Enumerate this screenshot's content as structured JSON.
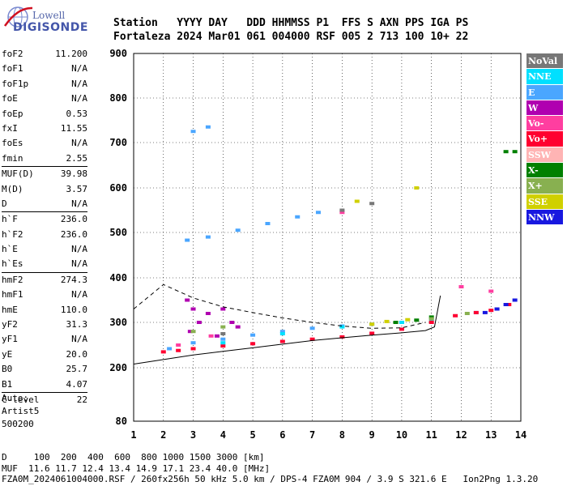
{
  "logo": {
    "top": "Lowell",
    "bottom": "DIGISONDE"
  },
  "header": {
    "line1": "Station   YYYY DAY   DDD HHMMSS P1  FFS S AXN PPS IGA PS",
    "line2": "Fortaleza 2024 Mar01 061 004000 RSF 005 2 713 100 10+ 22"
  },
  "params": {
    "group1": [
      {
        "name": "foF2",
        "value": "11.200"
      },
      {
        "name": "foF1",
        "value": "N/A"
      },
      {
        "name": "foF1p",
        "value": "N/A"
      },
      {
        "name": "foE",
        "value": "N/A"
      },
      {
        "name": "foEp",
        "value": "0.53"
      },
      {
        "name": "fxI",
        "value": "11.55"
      },
      {
        "name": "foEs",
        "value": "N/A"
      },
      {
        "name": "fmin",
        "value": "2.55"
      }
    ],
    "group2": [
      {
        "name": "MUF(D)",
        "value": "39.98"
      },
      {
        "name": "M(D)",
        "value": "3.57"
      },
      {
        "name": "D",
        "value": "N/A"
      }
    ],
    "group3": [
      {
        "name": "h`F",
        "value": "236.0"
      },
      {
        "name": "h`F2",
        "value": "236.0"
      },
      {
        "name": "h`E",
        "value": "N/A"
      },
      {
        "name": "h`Es",
        "value": "N/A"
      }
    ],
    "group4": [
      {
        "name": "hmF2",
        "value": "274.3"
      },
      {
        "name": "hmF1",
        "value": "N/A"
      },
      {
        "name": "hmE",
        "value": "110.0"
      },
      {
        "name": "yF2",
        "value": "31.3"
      },
      {
        "name": "yF1",
        "value": "N/A"
      },
      {
        "name": "yE",
        "value": "20.0"
      },
      {
        "name": "B0",
        "value": "25.7"
      },
      {
        "name": "B1",
        "value": "4.07"
      }
    ],
    "group5": [
      {
        "name": "C-level",
        "value": "22"
      }
    ]
  },
  "auto": {
    "line1": "Auto:",
    "line2": "Artist5",
    "line3": "500200"
  },
  "legend": [
    {
      "label": "NoVal",
      "color": "#777777"
    },
    {
      "label": "NNE",
      "color": "#00e0ff"
    },
    {
      "label": "E",
      "color": "#4aa6ff"
    },
    {
      "label": "W",
      "color": "#b000b0"
    },
    {
      "label": "Vo-",
      "color": "#ff3ea0"
    },
    {
      "label": "Vo+",
      "color": "#ff0030"
    },
    {
      "label": "SSW",
      "color": "#ffb4b4"
    },
    {
      "label": "X-",
      "color": "#008000"
    },
    {
      "label": "X+",
      "color": "#88b050"
    },
    {
      "label": "SSE",
      "color": "#d0d000"
    },
    {
      "label": "NNW",
      "color": "#1818e0"
    }
  ],
  "footer": {
    "line1": "D     100  200  400  600  800 1000 1500 3000 [km]",
    "line2": "MUF  11.6 11.7 12.4 13.4 14.9 17.1 23.4 40.0 [MHz]",
    "line3": "FZA0M_2024061004000.RSF / 260fx256h 50 kHz 5.0 km / DPS-4 FZA0M 904 / 3.9 S 321.6 E   Ion2Png 1.3.20"
  },
  "chart_data": {
    "type": "scatter",
    "xlim": [
      1,
      14
    ],
    "ylim": [
      80,
      900
    ],
    "x_ticks": [
      "1",
      "2",
      "3",
      "4",
      "5",
      "6",
      "7",
      "8",
      "9",
      "10",
      "11",
      "12",
      "13",
      "14"
    ],
    "y_ticks": [
      "80",
      "200",
      "300",
      "400",
      "500",
      "600",
      "700",
      "800",
      "900"
    ],
    "grid": true,
    "series": [
      {
        "name": "E",
        "points": [
          [
            2.2,
            242
          ],
          [
            3,
            255
          ],
          [
            4,
            263
          ],
          [
            5,
            272
          ],
          [
            6,
            280
          ],
          [
            7,
            287
          ],
          [
            8,
            292
          ],
          [
            9,
            296
          ],
          [
            10,
            300
          ],
          [
            11,
            306
          ],
          [
            2.8,
            483
          ],
          [
            3.5,
            490
          ],
          [
            4.5,
            505
          ],
          [
            5.5,
            520
          ],
          [
            6.5,
            535
          ],
          [
            7.2,
            545
          ],
          [
            3,
            725
          ],
          [
            3.5,
            735
          ],
          [
            12.5,
            322
          ],
          [
            13.2,
            330
          ]
        ]
      },
      {
        "name": "Vo+",
        "points": [
          [
            2,
            235
          ],
          [
            2.5,
            238
          ],
          [
            3,
            242
          ],
          [
            4,
            248
          ],
          [
            5,
            253
          ],
          [
            6,
            258
          ],
          [
            7,
            263
          ],
          [
            8,
            268
          ],
          [
            9,
            276
          ],
          [
            10,
            285
          ],
          [
            11,
            300
          ],
          [
            11.8,
            315
          ],
          [
            12.5,
            322
          ],
          [
            13,
            327
          ],
          [
            13.6,
            340
          ]
        ]
      },
      {
        "name": "W",
        "points": [
          [
            2.8,
            350
          ],
          [
            3,
            330
          ],
          [
            3.2,
            300
          ],
          [
            3.5,
            320
          ],
          [
            4,
            330
          ],
          [
            4.3,
            300
          ],
          [
            4.5,
            290
          ],
          [
            2.9,
            280
          ],
          [
            3.8,
            270
          ]
        ]
      },
      {
        "name": "X-",
        "points": [
          [
            9.8,
            300
          ],
          [
            10.5,
            305
          ],
          [
            11,
            312
          ],
          [
            13.5,
            680
          ],
          [
            13.8,
            680
          ]
        ]
      },
      {
        "name": "X+",
        "points": [
          [
            3,
            280
          ],
          [
            4,
            290
          ],
          [
            10,
            300
          ],
          [
            11,
            308
          ],
          [
            12.2,
            320
          ]
        ]
      },
      {
        "name": "SSE",
        "points": [
          [
            9,
            296
          ],
          [
            9.5,
            302
          ],
          [
            10.2,
            306
          ],
          [
            8.5,
            570
          ],
          [
            10.5,
            600
          ]
        ]
      },
      {
        "name": "NNW",
        "points": [
          [
            12.8,
            322
          ],
          [
            13.2,
            330
          ],
          [
            13.5,
            340
          ],
          [
            13.8,
            350
          ]
        ]
      },
      {
        "name": "Vo-",
        "points": [
          [
            2.5,
            250
          ],
          [
            3.6,
            270
          ],
          [
            8,
            545
          ],
          [
            12,
            380
          ],
          [
            13,
            370
          ]
        ]
      },
      {
        "name": "NNE",
        "points": [
          [
            4,
            255
          ],
          [
            6,
            275
          ],
          [
            8,
            290
          ],
          [
            10,
            300
          ]
        ]
      },
      {
        "name": "NoVal",
        "points": [
          [
            4,
            275
          ],
          [
            8,
            550
          ],
          [
            9,
            565
          ]
        ]
      }
    ]
  }
}
